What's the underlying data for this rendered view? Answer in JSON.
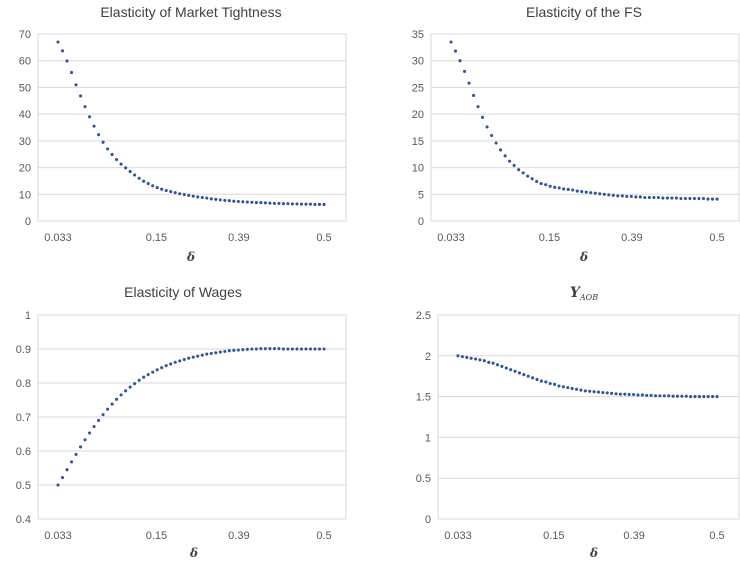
{
  "chart_data": [
    {
      "id": "p1",
      "type": "scatter",
      "title": "Elasticity of Market Tightness",
      "xlabel": "δ",
      "ylabel": "",
      "ylim": [
        0,
        70
      ],
      "yticks": [
        0,
        10,
        20,
        30,
        40,
        50,
        60,
        70
      ],
      "xtick_labels": [
        "0.033",
        "0.15",
        "0.39",
        "0.5"
      ],
      "grid": "horizontal",
      "legend": "none",
      "marker_color": "#2F5597",
      "series": [
        {
          "values": [
            67.0,
            63.7,
            59.9,
            55.6,
            51.0,
            46.8,
            42.8,
            39.0,
            35.5,
            32.3,
            29.5,
            27.0,
            24.9,
            23.0,
            21.3,
            19.9,
            18.5,
            17.2,
            16.0,
            14.9,
            14.0,
            13.2,
            12.5,
            11.9,
            11.4,
            11.0,
            10.6,
            10.2,
            9.9,
            9.6,
            9.3,
            9.0,
            8.8,
            8.6,
            8.3,
            8.1,
            7.9,
            7.7,
            7.6,
            7.4,
            7.3,
            7.2,
            7.1,
            7.0,
            6.9,
            6.9,
            6.8,
            6.7,
            6.6,
            6.6,
            6.5,
            6.5,
            6.4,
            6.4,
            6.3,
            6.3,
            6.3,
            6.2,
            6.2,
            6.2
          ]
        }
      ]
    },
    {
      "id": "p2",
      "type": "scatter",
      "title": "Elasticity of the FS",
      "xlabel": "δ",
      "ylabel": "",
      "ylim": [
        0,
        35
      ],
      "yticks": [
        0,
        5,
        10,
        15,
        20,
        25,
        30,
        35
      ],
      "xtick_labels": [
        "0.033",
        "0.15",
        "0.39",
        "0.5"
      ],
      "grid": "horizontal",
      "legend": "none",
      "marker_color": "#2F5597",
      "series": [
        {
          "values": [
            33.5,
            31.8,
            30.0,
            28.0,
            25.8,
            23.5,
            21.4,
            19.4,
            17.6,
            16.0,
            14.6,
            13.3,
            12.2,
            11.2,
            10.4,
            9.6,
            9.0,
            8.4,
            7.9,
            7.4,
            7.0,
            6.8,
            6.5,
            6.3,
            6.2,
            6.0,
            5.9,
            5.8,
            5.6,
            5.5,
            5.4,
            5.3,
            5.2,
            5.1,
            5.0,
            4.9,
            4.8,
            4.7,
            4.7,
            4.6,
            4.6,
            4.5,
            4.5,
            4.4,
            4.4,
            4.4,
            4.4,
            4.3,
            4.3,
            4.3,
            4.3,
            4.2,
            4.2,
            4.2,
            4.2,
            4.2,
            4.2,
            4.1,
            4.1,
            4.1
          ]
        }
      ]
    },
    {
      "id": "p3",
      "type": "scatter",
      "title": "Elasticity of Wages",
      "xlabel": "δ",
      "ylabel": "",
      "ylim": [
        0.4,
        1.0
      ],
      "yticks": [
        0.4,
        0.5,
        0.6,
        0.7,
        0.8,
        0.9,
        1
      ],
      "xtick_labels": [
        "0.033",
        "0.15",
        "0.39",
        "0.5"
      ],
      "grid": "horizontal",
      "legend": "none",
      "marker_color": "#2F5597",
      "series": [
        {
          "values": [
            0.5,
            0.522,
            0.545,
            0.568,
            0.59,
            0.612,
            0.633,
            0.653,
            0.672,
            0.69,
            0.707,
            0.723,
            0.738,
            0.752,
            0.765,
            0.777,
            0.788,
            0.798,
            0.808,
            0.817,
            0.825,
            0.832,
            0.839,
            0.845,
            0.851,
            0.856,
            0.861,
            0.865,
            0.869,
            0.873,
            0.876,
            0.879,
            0.882,
            0.885,
            0.887,
            0.889,
            0.891,
            0.893,
            0.895,
            0.896,
            0.897,
            0.898,
            0.899,
            0.9,
            0.9,
            0.901,
            0.901,
            0.901,
            0.901,
            0.901,
            0.9,
            0.9,
            0.9,
            0.9,
            0.9,
            0.9,
            0.9,
            0.9,
            0.9,
            0.9
          ]
        }
      ]
    },
    {
      "id": "p4",
      "type": "scatter",
      "title": "Y",
      "title_subscript": "AOB",
      "xlabel": "δ",
      "ylabel": "",
      "ylim": [
        0,
        2.5
      ],
      "yticks": [
        0,
        0.5,
        1,
        1.5,
        2,
        2.5
      ],
      "xtick_labels": [
        "0.033",
        "0.15",
        "0.39",
        "0.5"
      ],
      "grid": "horizontal",
      "legend": "none",
      "marker_color": "#2F5597",
      "series": [
        {
          "values": [
            2.0,
            1.99,
            1.98,
            1.97,
            1.96,
            1.95,
            1.94,
            1.92,
            1.91,
            1.89,
            1.87,
            1.85,
            1.83,
            1.81,
            1.79,
            1.77,
            1.75,
            1.73,
            1.71,
            1.69,
            1.68,
            1.66,
            1.65,
            1.63,
            1.62,
            1.61,
            1.6,
            1.59,
            1.58,
            1.57,
            1.565,
            1.56,
            1.555,
            1.55,
            1.545,
            1.54,
            1.535,
            1.53,
            1.53,
            1.525,
            1.525,
            1.52,
            1.52,
            1.515,
            1.515,
            1.51,
            1.51,
            1.51,
            1.51,
            1.505,
            1.505,
            1.505,
            1.505,
            1.5,
            1.5,
            1.5,
            1.5,
            1.5,
            1.5,
            1.5
          ]
        }
      ]
    }
  ]
}
